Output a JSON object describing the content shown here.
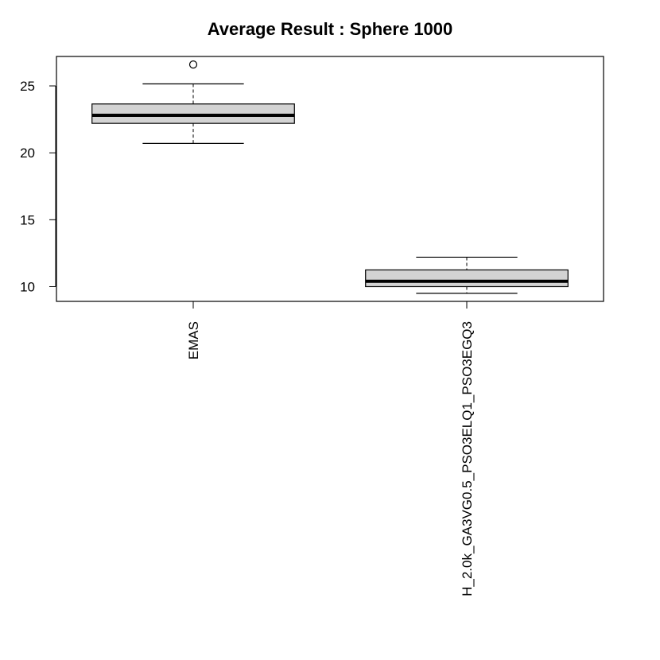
{
  "chart_data": {
    "type": "boxplot",
    "title": "Average Result : Sphere 1000",
    "xlabel": "",
    "ylabel": "",
    "ylim": [
      8.9,
      27.2
    ],
    "y_ticks": [
      10,
      15,
      20,
      25
    ],
    "y_tick_labels": [
      "10",
      "15",
      "20",
      "25"
    ],
    "grid": false,
    "categories": [
      "EMAS",
      "H_2.0k_GA3VG0.5_PSO3ELQ1_PSO3EGQ3"
    ],
    "boxes": [
      {
        "category": "EMAS",
        "whisker_low": 20.7,
        "q1": 22.2,
        "median": 22.8,
        "q3": 23.65,
        "whisker_high": 25.15,
        "outliers": [
          26.6
        ]
      },
      {
        "category": "H_2.0k_GA3VG0.5_PSO3ELQ1_PSO3EGQ3",
        "whisker_low": 9.5,
        "q1": 10.0,
        "median": 10.4,
        "q3": 11.25,
        "whisker_high": 12.2,
        "outliers": []
      }
    ],
    "colors": {
      "box_fill": "#d3d3d3",
      "stroke": "#000000"
    }
  }
}
